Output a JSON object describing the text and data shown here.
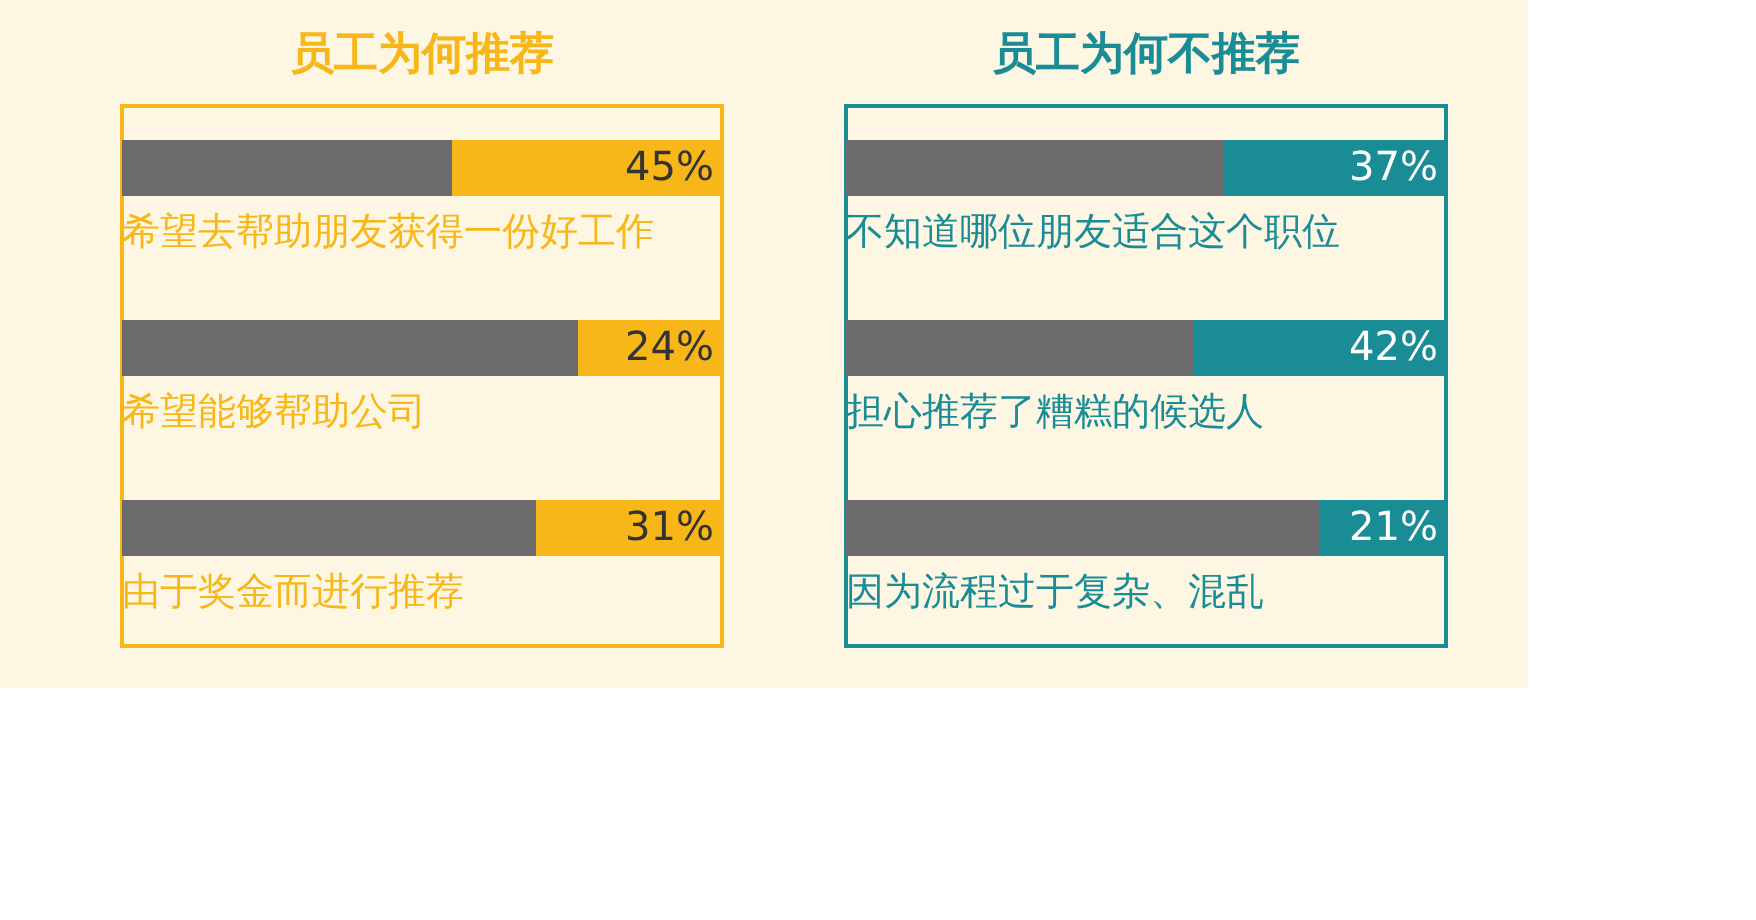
{
  "chart_data": [
    {
      "type": "bar",
      "orientation": "horizontal",
      "stacked": true,
      "title": "员工为何推荐",
      "categories": [
        "希望去帮助朋友获得一份好工作",
        "希望能够帮助公司",
        "由于奖金而进行推荐"
      ],
      "xlim": [
        0,
        100
      ],
      "tick_labels": false,
      "series": [
        {
          "color": "#6b6b6b",
          "values": [
            55,
            76,
            69
          ]
        },
        {
          "color": "#f7b718",
          "values": [
            45,
            24,
            31
          ],
          "value_labels": [
            "45%",
            "24%",
            "31%"
          ]
        }
      ]
    },
    {
      "type": "bar",
      "orientation": "horizontal",
      "stacked": true,
      "title": "员工为何不推荐",
      "categories": [
        "不知道哪位朋友适合这个职位",
        "担心推荐了糟糕的候选人",
        "因为流程过于复杂、混乱"
      ],
      "xlim": [
        0,
        100
      ],
      "tick_labels": false,
      "series": [
        {
          "color": "#6b6b6b",
          "values": [
            63,
            58,
            79
          ]
        },
        {
          "color": "#1a8c96",
          "values": [
            37,
            42,
            21
          ],
          "value_labels": [
            "37%",
            "42%",
            "21%"
          ]
        }
      ]
    }
  ]
}
